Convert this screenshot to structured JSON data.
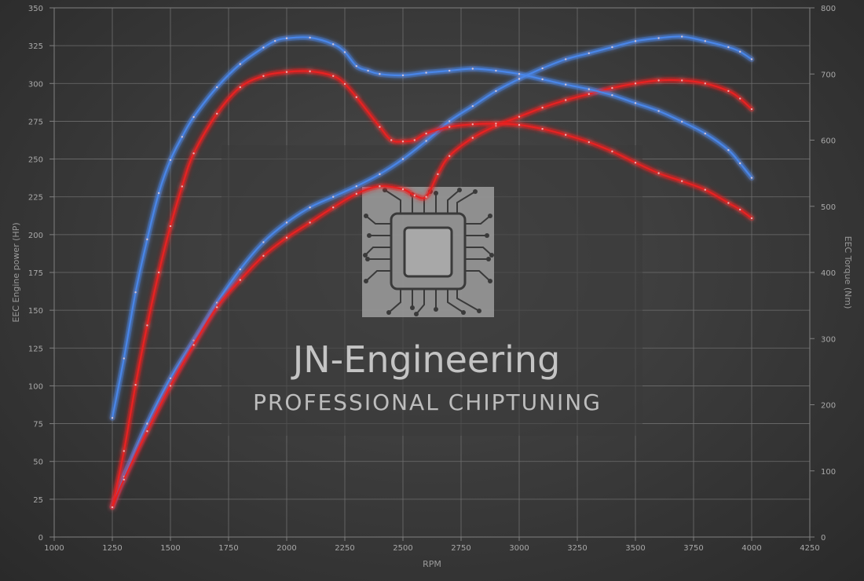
{
  "chart_data": {
    "type": "line",
    "title": "",
    "xlabel": "RPM",
    "ylabel_left": "EEC Engine power (HP)",
    "ylabel_right": "EEC Torque (Nm)",
    "xlim": [
      1000,
      4250
    ],
    "ylim_left": [
      0,
      350
    ],
    "ylim_right": [
      0,
      800
    ],
    "x_ticks": [
      1000,
      1250,
      1500,
      1750,
      2000,
      2250,
      2500,
      2750,
      3000,
      3250,
      3500,
      3750,
      4000,
      4250
    ],
    "y_left_ticks": [
      0,
      25,
      50,
      75,
      100,
      125,
      150,
      175,
      200,
      225,
      250,
      275,
      300,
      325,
      350
    ],
    "y_right_ticks": [
      0,
      100,
      200,
      300,
      400,
      500,
      600,
      700,
      800
    ],
    "grid": true,
    "legend": "none",
    "series": [
      {
        "axis": "left",
        "color": "#4a86e8",
        "points": [
          [
            1250,
            20
          ],
          [
            1300,
            40
          ],
          [
            1400,
            75
          ],
          [
            1500,
            105
          ],
          [
            1600,
            130
          ],
          [
            1700,
            155
          ],
          [
            1800,
            177
          ],
          [
            1900,
            195
          ],
          [
            2000,
            208
          ],
          [
            2100,
            218
          ],
          [
            2200,
            225
          ],
          [
            2300,
            232
          ],
          [
            2400,
            240
          ],
          [
            2500,
            250
          ],
          [
            2600,
            262
          ],
          [
            2700,
            275
          ],
          [
            2800,
            285
          ],
          [
            2900,
            295
          ],
          [
            3000,
            303
          ],
          [
            3100,
            310
          ],
          [
            3200,
            316
          ],
          [
            3300,
            320
          ],
          [
            3400,
            324
          ],
          [
            3500,
            328
          ],
          [
            3600,
            330
          ],
          [
            3700,
            331
          ],
          [
            3800,
            328
          ],
          [
            3900,
            324
          ],
          [
            3950,
            321
          ],
          [
            4000,
            316
          ]
        ]
      },
      {
        "axis": "left",
        "color": "#e82020",
        "points": [
          [
            1250,
            20
          ],
          [
            1300,
            38
          ],
          [
            1400,
            70
          ],
          [
            1500,
            100
          ],
          [
            1600,
            127
          ],
          [
            1700,
            152
          ],
          [
            1800,
            170
          ],
          [
            1900,
            186
          ],
          [
            2000,
            198
          ],
          [
            2100,
            208
          ],
          [
            2200,
            218
          ],
          [
            2300,
            227
          ],
          [
            2400,
            232
          ],
          [
            2500,
            230
          ],
          [
            2550,
            226
          ],
          [
            2600,
            225
          ],
          [
            2650,
            240
          ],
          [
            2700,
            252
          ],
          [
            2800,
            264
          ],
          [
            2900,
            272
          ],
          [
            3000,
            278
          ],
          [
            3100,
            284
          ],
          [
            3200,
            289
          ],
          [
            3300,
            293
          ],
          [
            3400,
            297
          ],
          [
            3500,
            300
          ],
          [
            3600,
            302
          ],
          [
            3700,
            302
          ],
          [
            3800,
            300
          ],
          [
            3900,
            295
          ],
          [
            3950,
            290
          ],
          [
            4000,
            283
          ]
        ]
      },
      {
        "axis": "right",
        "color": "#4a86e8",
        "points": [
          [
            1250,
            180
          ],
          [
            1300,
            270
          ],
          [
            1350,
            370
          ],
          [
            1400,
            450
          ],
          [
            1450,
            520
          ],
          [
            1500,
            570
          ],
          [
            1550,
            605
          ],
          [
            1600,
            635
          ],
          [
            1700,
            680
          ],
          [
            1800,
            715
          ],
          [
            1900,
            740
          ],
          [
            1950,
            750
          ],
          [
            2000,
            754
          ],
          [
            2100,
            755
          ],
          [
            2200,
            745
          ],
          [
            2250,
            733
          ],
          [
            2300,
            712
          ],
          [
            2350,
            705
          ],
          [
            2400,
            700
          ],
          [
            2500,
            698
          ],
          [
            2600,
            702
          ],
          [
            2700,
            705
          ],
          [
            2800,
            708
          ],
          [
            2900,
            705
          ],
          [
            3000,
            700
          ],
          [
            3100,
            692
          ],
          [
            3200,
            684
          ],
          [
            3300,
            677
          ],
          [
            3400,
            668
          ],
          [
            3500,
            656
          ],
          [
            3600,
            644
          ],
          [
            3700,
            628
          ],
          [
            3800,
            610
          ],
          [
            3900,
            585
          ],
          [
            3950,
            565
          ],
          [
            4000,
            543
          ]
        ]
      },
      {
        "axis": "right",
        "color": "#e82020",
        "points": [
          [
            1250,
            45
          ],
          [
            1300,
            130
          ],
          [
            1350,
            230
          ],
          [
            1400,
            320
          ],
          [
            1450,
            400
          ],
          [
            1500,
            470
          ],
          [
            1550,
            530
          ],
          [
            1600,
            580
          ],
          [
            1700,
            640
          ],
          [
            1800,
            680
          ],
          [
            1900,
            697
          ],
          [
            2000,
            703
          ],
          [
            2100,
            704
          ],
          [
            2200,
            697
          ],
          [
            2250,
            685
          ],
          [
            2300,
            665
          ],
          [
            2400,
            620
          ],
          [
            2450,
            600
          ],
          [
            2500,
            598
          ],
          [
            2550,
            600
          ],
          [
            2600,
            610
          ],
          [
            2700,
            620
          ],
          [
            2800,
            624
          ],
          [
            2900,
            625
          ],
          [
            3000,
            623
          ],
          [
            3100,
            617
          ],
          [
            3200,
            608
          ],
          [
            3300,
            597
          ],
          [
            3400,
            583
          ],
          [
            3500,
            566
          ],
          [
            3600,
            550
          ],
          [
            3700,
            538
          ],
          [
            3800,
            525
          ],
          [
            3900,
            505
          ],
          [
            3950,
            495
          ],
          [
            4000,
            482
          ]
        ]
      }
    ]
  },
  "watermark": {
    "title": "JN-Engineering",
    "subtitle": "PROFESSIONAL CHIPTUNING",
    "logo": "circuit-chip-icon"
  }
}
